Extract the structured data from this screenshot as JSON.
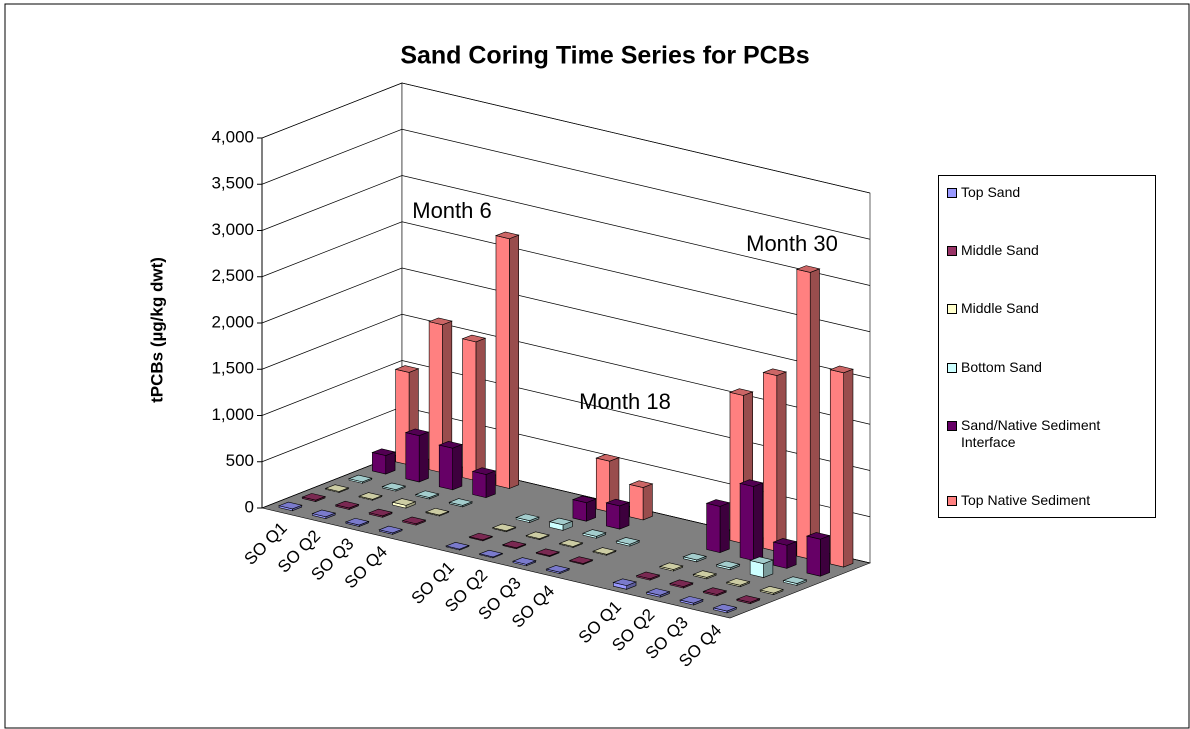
{
  "chart_data": {
    "type": "bar3d",
    "title": "Sand Coring Time Series for PCBs",
    "y_label": "tPCBs (µg/kg dwt)",
    "annotations": [
      "Month 6",
      "Month 18",
      "Month 30"
    ],
    "categories": [
      "SO Q1",
      "SO Q2",
      "SO Q3",
      "SO Q4",
      null,
      "SO Q1",
      "SO Q2",
      "SO Q3",
      "SO Q4",
      null,
      "SO Q1",
      "SO Q2",
      "SO Q3",
      "SO Q4"
    ],
    "series": [
      {
        "name": "Top Sand",
        "color": "#9999ff",
        "values": [
          20,
          20,
          15,
          15,
          null,
          10,
          10,
          15,
          15,
          null,
          40,
          20,
          20,
          20
        ]
      },
      {
        "name": "Middle Sand",
        "color": "#993366",
        "values": [
          15,
          15,
          15,
          15,
          null,
          10,
          10,
          10,
          10,
          null,
          15,
          15,
          15,
          15
        ]
      },
      {
        "name": "Middle Sand",
        "color": "#ffffcc",
        "values": [
          10,
          10,
          30,
          10,
          null,
          10,
          10,
          10,
          10,
          null,
          15,
          15,
          15,
          15
        ]
      },
      {
        "name": "Bottom Sand",
        "color": "#ccffff",
        "values": [
          15,
          15,
          15,
          15,
          null,
          20,
          60,
          20,
          20,
          null,
          20,
          20,
          150,
          20
        ]
      },
      {
        "name": "Sand/Native Sediment Interface",
        "color": "#660066",
        "values": [
          200,
          500,
          450,
          250,
          null,
          null,
          200,
          250,
          null,
          null,
          500,
          800,
          250,
          400
        ]
      },
      {
        "name": "Top Native Sediment",
        "color": "#ff8080",
        "values": [
          1000,
          1600,
          1500,
          2700,
          null,
          null,
          550,
          350,
          null,
          null,
          1600,
          1900,
          3100,
          2100
        ]
      }
    ],
    "ylim": [
      0,
      4000
    ],
    "yticks": [
      0,
      500,
      {
        "value": 1000,
        "label": "1,000"
      },
      {
        "value": 1500,
        "label": "1,500"
      },
      {
        "value": 2000,
        "label": "2,000"
      },
      {
        "value": 2500,
        "label": "2,500"
      },
      {
        "value": 3000,
        "label": "3,000"
      },
      {
        "value": 3500,
        "label": "3,500"
      },
      {
        "value": 4000,
        "label": "4,000"
      }
    ],
    "grid": true
  }
}
